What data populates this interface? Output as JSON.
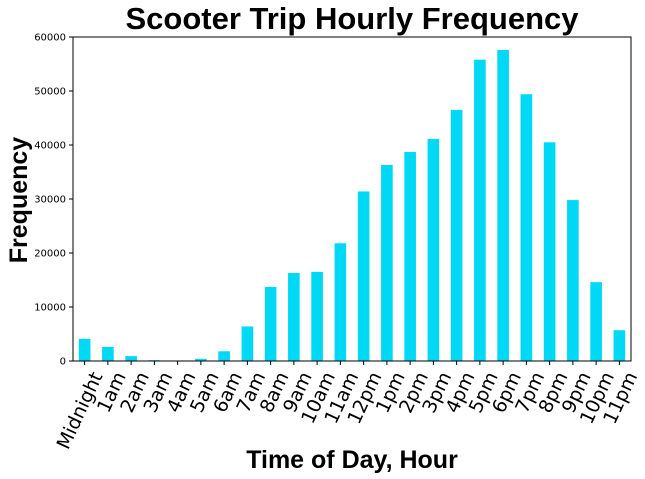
{
  "chart_data": {
    "type": "bar",
    "title": "Scooter Trip Hourly Frequency",
    "xlabel": "Time of Day, Hour",
    "ylabel": "Frequency",
    "categories": [
      "Midnight",
      "1am",
      "2am",
      "3am",
      "4am",
      "5am",
      "6am",
      "7am",
      "8am",
      "9am",
      "10am",
      "11am",
      "12pm",
      "1pm",
      "2pm",
      "3pm",
      "4pm",
      "5pm",
      "6pm",
      "7pm",
      "8pm",
      "9pm",
      "10pm",
      "11pm"
    ],
    "values": [
      4100,
      2600,
      900,
      150,
      100,
      400,
      1800,
      6400,
      13700,
      16300,
      16500,
      21800,
      31400,
      36300,
      38700,
      41100,
      46500,
      55800,
      57600,
      49400,
      40500,
      29800,
      14600,
      5700
    ],
    "ylim": [
      0,
      60000
    ],
    "yticks": [
      0,
      10000,
      20000,
      30000,
      40000,
      50000,
      60000
    ],
    "bar_color": "#00d9f5",
    "grid": false,
    "legend": "none"
  }
}
